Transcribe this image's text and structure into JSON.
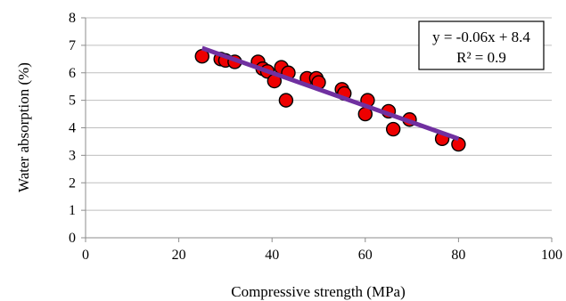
{
  "chart_data": {
    "type": "scatter",
    "xlabel": "Compressive strength (MPa)",
    "ylabel": "Water absorption (%)",
    "xlim": [
      0,
      100
    ],
    "ylim": [
      0,
      8
    ],
    "xticks": [
      0,
      20,
      40,
      60,
      80,
      100
    ],
    "yticks": [
      0,
      1,
      2,
      3,
      4,
      5,
      6,
      7,
      8
    ],
    "grid": "horizontal",
    "marker_color": "#ee0000",
    "trendline_color": "#7030a0",
    "points": [
      {
        "x": 25,
        "y": 6.6
      },
      {
        "x": 29,
        "y": 6.5
      },
      {
        "x": 30,
        "y": 6.45
      },
      {
        "x": 32,
        "y": 6.4
      },
      {
        "x": 37,
        "y": 6.4
      },
      {
        "x": 38,
        "y": 6.15
      },
      {
        "x": 39,
        "y": 6.05
      },
      {
        "x": 40.5,
        "y": 5.7
      },
      {
        "x": 42,
        "y": 6.2
      },
      {
        "x": 43.5,
        "y": 6.0
      },
      {
        "x": 43,
        "y": 5.0
      },
      {
        "x": 47.5,
        "y": 5.8
      },
      {
        "x": 49.5,
        "y": 5.8
      },
      {
        "x": 50,
        "y": 5.65
      },
      {
        "x": 55,
        "y": 5.4
      },
      {
        "x": 55.5,
        "y": 5.25
      },
      {
        "x": 60.5,
        "y": 5.0
      },
      {
        "x": 60,
        "y": 4.5
      },
      {
        "x": 65,
        "y": 4.6
      },
      {
        "x": 66,
        "y": 3.95
      },
      {
        "x": 69.5,
        "y": 4.3
      },
      {
        "x": 76.5,
        "y": 3.6
      },
      {
        "x": 80,
        "y": 3.4
      }
    ],
    "trendline": {
      "x_start": 25,
      "x_end": 80,
      "slope": -0.06,
      "intercept": 8.4,
      "equation": "y = -0.06x + 8.4",
      "r_squared": "R² = 0.9"
    }
  }
}
